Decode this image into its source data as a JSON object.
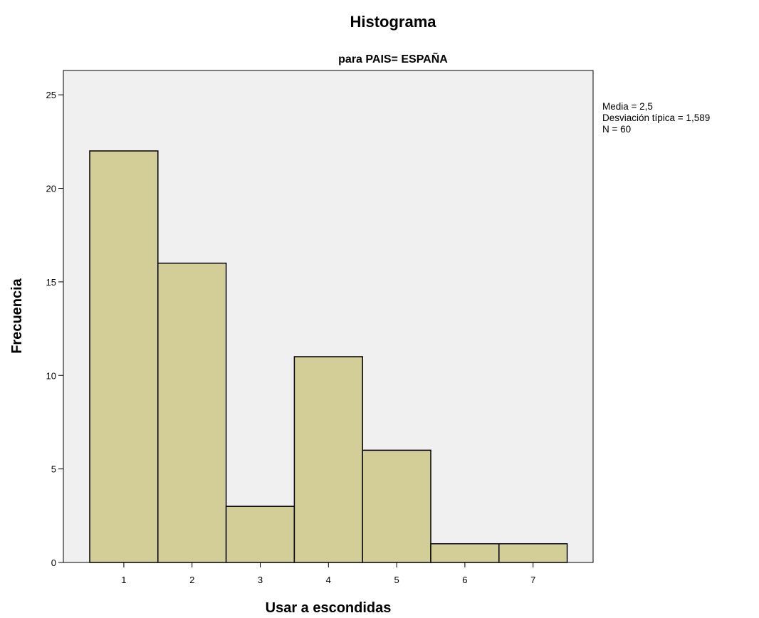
{
  "chart_data": {
    "type": "bar",
    "title": "Histograma",
    "subtitle": "para PAIS= ESPAÑA",
    "xlabel": "Usar a escondidas",
    "ylabel": "Frecuencia",
    "categories": [
      "1",
      "2",
      "3",
      "4",
      "5",
      "6",
      "7"
    ],
    "values": [
      22,
      16,
      3,
      11,
      6,
      1,
      1
    ],
    "ylim": [
      0,
      26.3
    ],
    "yticks": [
      "0",
      "5",
      "10",
      "15",
      "20",
      "25"
    ],
    "grid": false,
    "stats": [
      "Media = 2,5",
      "Desviación típica = 1,589",
      "N = 60"
    ],
    "colors": {
      "bar_fill": "#d3cd97",
      "bar_stroke": "#000000",
      "plot_background": "#f0f0f0"
    }
  }
}
